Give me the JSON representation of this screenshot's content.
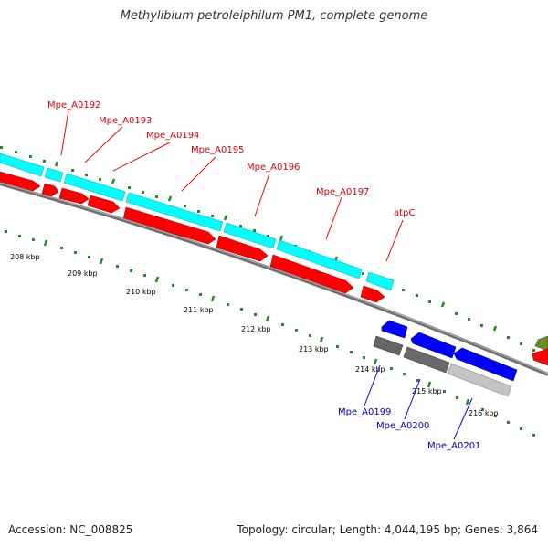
{
  "title": "Methylibium petroleiphilum PM1, complete genome",
  "footer": {
    "accession": "Accession: NC_008825",
    "summary": "Topology: circular; Length: 4,044,195 bp; Genes: 3,864"
  },
  "colors": {
    "forward_gene": "#ff0000",
    "forward_cds": "#00ffff",
    "reverse_gene": "#0000ff",
    "reverse_cds_dark": "#666666",
    "reverse_cds_light": "#bdbdbd",
    "ticks": "#228b22",
    "backbone": "#808080",
    "olive_feature": "#6b8e23"
  },
  "scale": {
    "ticks": [
      "208 kbp",
      "209 kbp",
      "210 kbp",
      "211 kbp",
      "212 kbp",
      "213 kbp",
      "214 kbp",
      "215 kbp",
      "216 kbp"
    ]
  },
  "gene_labels": {
    "forward": [
      "Mpe_A0192",
      "Mpe_A0193",
      "Mpe_A0194",
      "Mpe_A0195",
      "Mpe_A0196",
      "Mpe_A0197",
      "atpC"
    ],
    "reverse": [
      "Mpe_A0199",
      "Mpe_A0200",
      "Mpe_A0201"
    ]
  }
}
